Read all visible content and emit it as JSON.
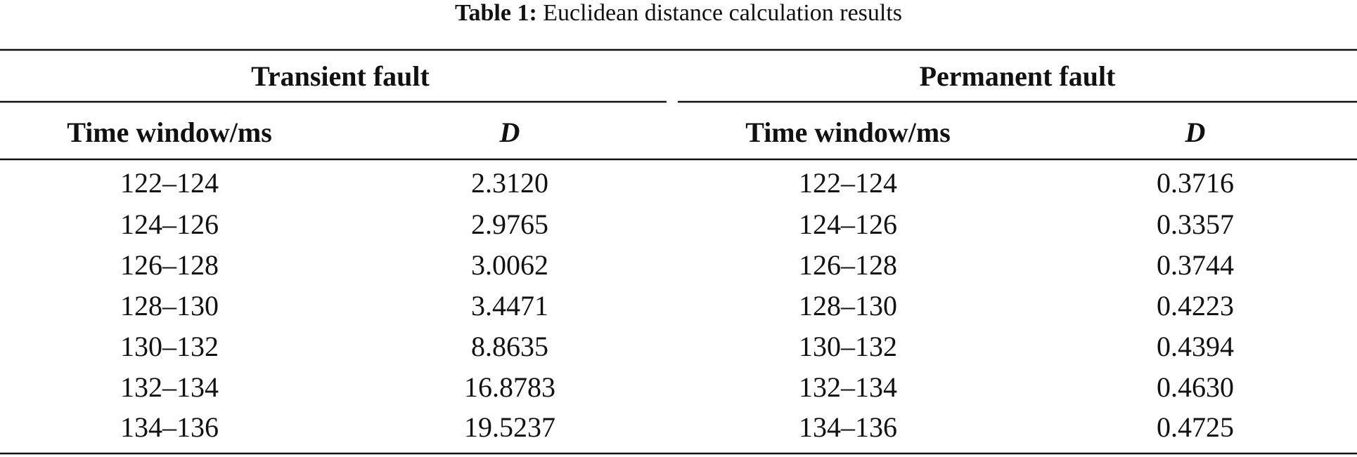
{
  "caption": {
    "label": "Table 1:",
    "text": "Euclidean distance calculation results"
  },
  "table": {
    "groups": [
      "Transient fault",
      "Permanent fault"
    ],
    "columns": [
      "Time window/ms",
      "D",
      "Time window/ms",
      "D"
    ],
    "rows": [
      [
        "122–124",
        "2.3120",
        "122–124",
        "0.3716"
      ],
      [
        "124–126",
        "2.9765",
        "124–126",
        "0.3357"
      ],
      [
        "126–128",
        "3.0062",
        "126–128",
        "0.3744"
      ],
      [
        "128–130",
        "3.4471",
        "128–130",
        "0.4223"
      ],
      [
        "130–132",
        "8.8635",
        "130–132",
        "0.4394"
      ],
      [
        "132–134",
        "16.8783",
        "132–134",
        "0.4630"
      ],
      [
        "134–136",
        "19.5237",
        "134–136",
        "0.4725"
      ]
    ]
  }
}
